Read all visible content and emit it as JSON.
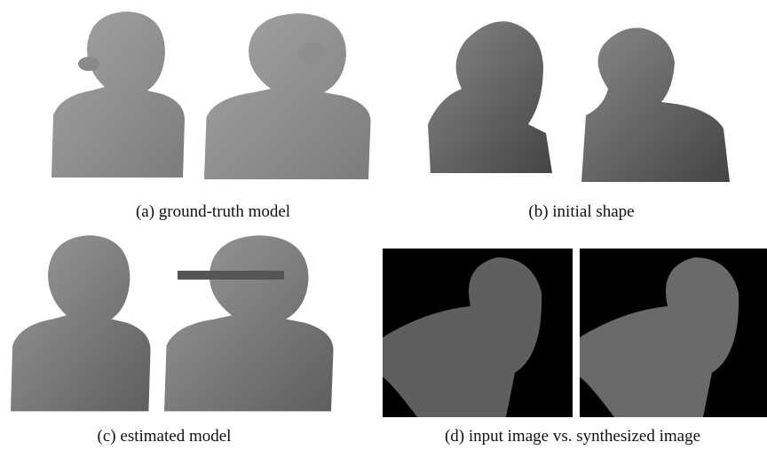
{
  "panels": [
    {
      "caption": "(a) ground-truth model"
    },
    {
      "caption": "(b) initial shape"
    },
    {
      "caption": "(c) estimated model"
    },
    {
      "caption": "(d) input image vs. synthesized image"
    }
  ]
}
